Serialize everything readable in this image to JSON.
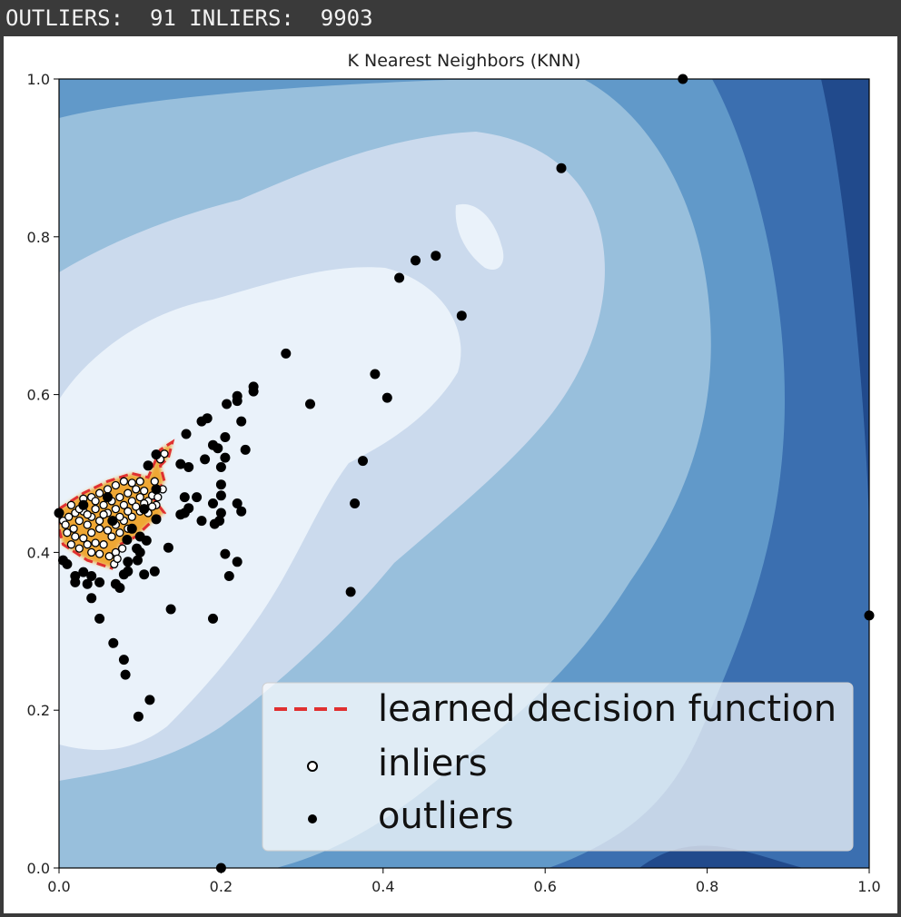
{
  "console": {
    "text": "OUTLIERS:  91 INLIERS:  9903"
  },
  "colors": {
    "contour_levels": [
      "#eaf2fa",
      "#cbdaed",
      "#98bfdc",
      "#6199c9",
      "#3b6fb0",
      "#214a8c"
    ],
    "decision_line": "#e03030",
    "decision_fill": "#f0a020",
    "inlier_face": "#ffffff",
    "inlier_edge": "#000000",
    "outlier": "#000000"
  },
  "chart_data": {
    "type": "scatter",
    "title": "K Nearest Neighbors (KNN)",
    "xlabel": "",
    "ylabel": "",
    "xlim": [
      0.0,
      1.0
    ],
    "ylim": [
      0.0,
      1.0
    ],
    "xticks": [
      "0.0",
      "0.2",
      "0.4",
      "0.6",
      "0.8",
      "1.0"
    ],
    "yticks": [
      "0.0",
      "0.2",
      "0.4",
      "0.6",
      "0.8",
      "1.0"
    ],
    "grid": false,
    "legend_position": "lower right",
    "legend": [
      {
        "label": "learned decision function",
        "marker": "dashed-line"
      },
      {
        "label": "inliers",
        "marker": "open-circle"
      },
      {
        "label": "outliers",
        "marker": "filled-circle"
      }
    ],
    "decision_boundary": [
      [
        0.0,
        0.455
      ],
      [
        0.03,
        0.475
      ],
      [
        0.06,
        0.49
      ],
      [
        0.09,
        0.5
      ],
      [
        0.11,
        0.495
      ],
      [
        0.125,
        0.53
      ],
      [
        0.14,
        0.54
      ],
      [
        0.135,
        0.52
      ],
      [
        0.125,
        0.51
      ],
      [
        0.13,
        0.49
      ],
      [
        0.115,
        0.47
      ],
      [
        0.13,
        0.45
      ],
      [
        0.11,
        0.435
      ],
      [
        0.095,
        0.42
      ],
      [
        0.075,
        0.41
      ],
      [
        0.065,
        0.38
      ],
      [
        0.05,
        0.385
      ],
      [
        0.035,
        0.39
      ],
      [
        0.02,
        0.4
      ],
      [
        0.005,
        0.41
      ],
      [
        0.0,
        0.43
      ]
    ],
    "series": [
      {
        "name": "outliers",
        "points": [
          [
            0.77,
            1.0
          ],
          [
            0.62,
            0.887
          ],
          [
            0.465,
            0.776
          ],
          [
            0.44,
            0.77
          ],
          [
            0.42,
            0.748
          ],
          [
            0.497,
            0.7
          ],
          [
            0.28,
            0.652
          ],
          [
            0.39,
            0.626
          ],
          [
            0.405,
            0.596
          ],
          [
            0.31,
            0.588
          ],
          [
            0.24,
            0.61
          ],
          [
            0.24,
            0.604
          ],
          [
            0.22,
            0.598
          ],
          [
            0.22,
            0.592
          ],
          [
            0.207,
            0.588
          ],
          [
            0.225,
            0.566
          ],
          [
            0.183,
            0.57
          ],
          [
            0.176,
            0.566
          ],
          [
            0.157,
            0.55
          ],
          [
            0.205,
            0.546
          ],
          [
            0.19,
            0.536
          ],
          [
            0.196,
            0.532
          ],
          [
            0.23,
            0.53
          ],
          [
            0.205,
            0.52
          ],
          [
            0.18,
            0.518
          ],
          [
            0.2,
            0.508
          ],
          [
            0.16,
            0.508
          ],
          [
            0.15,
            0.512
          ],
          [
            0.11,
            0.51
          ],
          [
            0.12,
            0.524
          ],
          [
            0.375,
            0.516
          ],
          [
            0.2,
            0.486
          ],
          [
            0.155,
            0.47
          ],
          [
            0.2,
            0.472
          ],
          [
            0.17,
            0.47
          ],
          [
            0.16,
            0.456
          ],
          [
            0.19,
            0.462
          ],
          [
            0.22,
            0.462
          ],
          [
            0.225,
            0.452
          ],
          [
            0.2,
            0.45
          ],
          [
            0.198,
            0.44
          ],
          [
            0.192,
            0.436
          ],
          [
            0.176,
            0.44
          ],
          [
            0.155,
            0.45
          ],
          [
            0.15,
            0.448
          ],
          [
            0.12,
            0.442
          ],
          [
            0.365,
            0.462
          ],
          [
            0.1,
            0.42
          ],
          [
            0.108,
            0.415
          ],
          [
            0.084,
            0.416
          ],
          [
            0.096,
            0.405
          ],
          [
            0.1,
            0.4
          ],
          [
            0.135,
            0.406
          ],
          [
            0.097,
            0.39
          ],
          [
            0.085,
            0.388
          ],
          [
            0.22,
            0.388
          ],
          [
            0.205,
            0.398
          ],
          [
            0.005,
            0.39
          ],
          [
            0.01,
            0.385
          ],
          [
            0.03,
            0.375
          ],
          [
            0.02,
            0.37
          ],
          [
            0.04,
            0.37
          ],
          [
            0.05,
            0.362
          ],
          [
            0.07,
            0.36
          ],
          [
            0.08,
            0.372
          ],
          [
            0.085,
            0.376
          ],
          [
            0.105,
            0.372
          ],
          [
            0.118,
            0.376
          ],
          [
            0.21,
            0.37
          ],
          [
            0.075,
            0.355
          ],
          [
            0.02,
            0.362
          ],
          [
            0.035,
            0.36
          ],
          [
            0.04,
            0.342
          ],
          [
            0.36,
            0.35
          ],
          [
            0.138,
            0.328
          ],
          [
            0.05,
            0.316
          ],
          [
            0.19,
            0.316
          ],
          [
            0.067,
            0.285
          ],
          [
            0.08,
            0.264
          ],
          [
            0.082,
            0.245
          ],
          [
            0.112,
            0.213
          ],
          [
            0.098,
            0.192
          ],
          [
            0.2,
            0.0
          ],
          [
            1.0,
            0.32
          ],
          [
            0.066,
            0.44
          ],
          [
            0.0,
            0.45
          ],
          [
            0.09,
            0.43
          ],
          [
            0.105,
            0.455
          ],
          [
            0.06,
            0.47
          ],
          [
            0.03,
            0.46
          ],
          [
            0.12,
            0.48
          ]
        ]
      },
      {
        "name": "inliers",
        "points": [
          [
            0.005,
            0.44
          ],
          [
            0.012,
            0.445
          ],
          [
            0.018,
            0.43
          ],
          [
            0.025,
            0.44
          ],
          [
            0.03,
            0.452
          ],
          [
            0.035,
            0.435
          ],
          [
            0.04,
            0.445
          ],
          [
            0.045,
            0.455
          ],
          [
            0.05,
            0.44
          ],
          [
            0.055,
            0.46
          ],
          [
            0.06,
            0.45
          ],
          [
            0.065,
            0.465
          ],
          [
            0.07,
            0.455
          ],
          [
            0.075,
            0.47
          ],
          [
            0.08,
            0.46
          ],
          [
            0.085,
            0.475
          ],
          [
            0.09,
            0.465
          ],
          [
            0.095,
            0.48
          ],
          [
            0.1,
            0.47
          ],
          [
            0.105,
            0.478
          ],
          [
            0.11,
            0.465
          ],
          [
            0.115,
            0.472
          ],
          [
            0.12,
            0.46
          ],
          [
            0.01,
            0.425
          ],
          [
            0.02,
            0.42
          ],
          [
            0.03,
            0.418
          ],
          [
            0.04,
            0.425
          ],
          [
            0.05,
            0.43
          ],
          [
            0.06,
            0.428
          ],
          [
            0.07,
            0.435
          ],
          [
            0.08,
            0.44
          ],
          [
            0.09,
            0.445
          ],
          [
            0.1,
            0.452
          ],
          [
            0.11,
            0.45
          ],
          [
            0.015,
            0.41
          ],
          [
            0.025,
            0.405
          ],
          [
            0.035,
            0.41
          ],
          [
            0.045,
            0.412
          ],
          [
            0.055,
            0.41
          ],
          [
            0.065,
            0.42
          ],
          [
            0.075,
            0.425
          ],
          [
            0.085,
            0.43
          ],
          [
            0.02,
            0.45
          ],
          [
            0.03,
            0.468
          ],
          [
            0.04,
            0.47
          ],
          [
            0.05,
            0.475
          ],
          [
            0.06,
            0.48
          ],
          [
            0.07,
            0.485
          ],
          [
            0.08,
            0.49
          ],
          [
            0.09,
            0.488
          ],
          [
            0.1,
            0.49
          ],
          [
            0.015,
            0.46
          ],
          [
            0.025,
            0.455
          ],
          [
            0.045,
            0.465
          ],
          [
            0.055,
            0.448
          ],
          [
            0.065,
            0.44
          ],
          [
            0.075,
            0.445
          ],
          [
            0.085,
            0.452
          ],
          [
            0.095,
            0.458
          ],
          [
            0.105,
            0.462
          ],
          [
            0.062,
            0.395
          ],
          [
            0.07,
            0.4
          ],
          [
            0.078,
            0.405
          ],
          [
            0.05,
            0.398
          ],
          [
            0.04,
            0.4
          ],
          [
            0.008,
            0.435
          ],
          [
            0.115,
            0.458
          ],
          [
            0.122,
            0.47
          ],
          [
            0.128,
            0.48
          ],
          [
            0.13,
            0.525
          ],
          [
            0.125,
            0.518
          ],
          [
            0.118,
            0.49
          ],
          [
            0.068,
            0.385
          ],
          [
            0.072,
            0.392
          ],
          [
            0.035,
            0.448
          ]
        ]
      }
    ]
  }
}
